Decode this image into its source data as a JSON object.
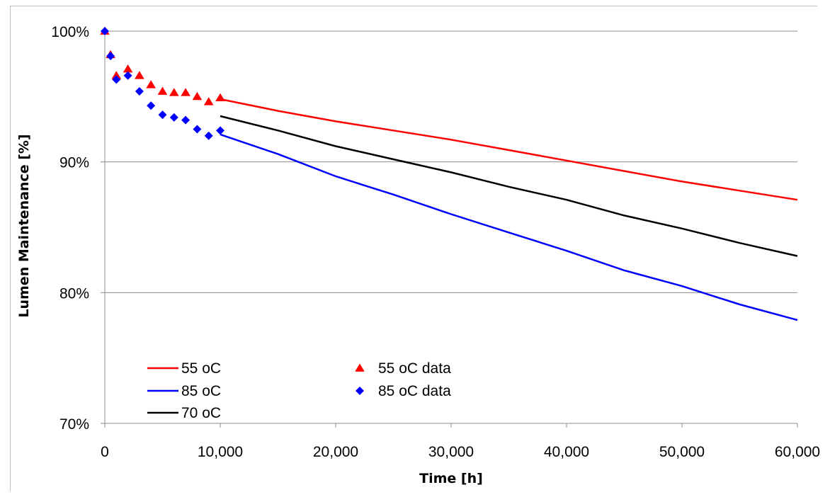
{
  "chart_data": {
    "type": "line",
    "title": "",
    "xlabel": "Time [h]",
    "ylabel": "Lumen Maintenance [%]",
    "xlim": [
      0,
      60000
    ],
    "ylim": [
      70,
      100
    ],
    "x_ticks": [
      0,
      10000,
      20000,
      30000,
      40000,
      50000,
      60000
    ],
    "x_tick_labels": [
      "0",
      "10,000",
      "20,000",
      "30,000",
      "40,000",
      "50,000",
      "60,000"
    ],
    "y_ticks": [
      70,
      80,
      90,
      100
    ],
    "y_tick_labels": [
      "70%",
      "80%",
      "90%",
      "100%"
    ],
    "grid": "horizontal",
    "legend_position": "bottom-left",
    "series": [
      {
        "name": "55 oC",
        "kind": "line",
        "color": "#ff0000",
        "x": [
          10000,
          15000,
          20000,
          25000,
          30000,
          35000,
          40000,
          45000,
          50000,
          55000,
          60000
        ],
        "y": [
          94.8,
          93.9,
          93.1,
          92.4,
          91.7,
          90.9,
          90.1,
          89.3,
          88.5,
          87.8,
          87.1
        ]
      },
      {
        "name": "85 oC",
        "kind": "line",
        "color": "#0000ff",
        "x": [
          10000,
          15000,
          20000,
          25000,
          30000,
          35000,
          40000,
          45000,
          50000,
          55000,
          60000
        ],
        "y": [
          92.1,
          90.6,
          88.9,
          87.5,
          86.0,
          84.6,
          83.2,
          81.7,
          80.5,
          79.1,
          77.9
        ]
      },
      {
        "name": "70 oC",
        "kind": "line",
        "color": "#000000",
        "x": [
          10000,
          15000,
          20000,
          25000,
          30000,
          35000,
          40000,
          45000,
          50000,
          55000,
          60000
        ],
        "y": [
          93.5,
          92.4,
          91.2,
          90.2,
          89.2,
          88.1,
          87.1,
          85.9,
          84.9,
          83.8,
          82.8
        ]
      },
      {
        "name": "55 oC data",
        "kind": "markers",
        "marker": "triangle",
        "color": "#ff0000",
        "x": [
          0,
          500,
          1000,
          2000,
          3000,
          4000,
          5000,
          6000,
          7000,
          8000,
          9000,
          10000
        ],
        "y": [
          100,
          98.2,
          96.6,
          97.1,
          96.6,
          95.9,
          95.4,
          95.3,
          95.3,
          95.0,
          94.6,
          94.9
        ]
      },
      {
        "name": "85 oC data",
        "kind": "markers",
        "marker": "diamond",
        "color": "#0000ff",
        "x": [
          0,
          500,
          1000,
          2000,
          3000,
          4000,
          5000,
          6000,
          7000,
          8000,
          9000,
          10000
        ],
        "y": [
          100,
          98.1,
          96.3,
          96.6,
          95.4,
          94.3,
          93.6,
          93.4,
          93.2,
          92.5,
          92.0,
          92.4
        ]
      }
    ]
  }
}
